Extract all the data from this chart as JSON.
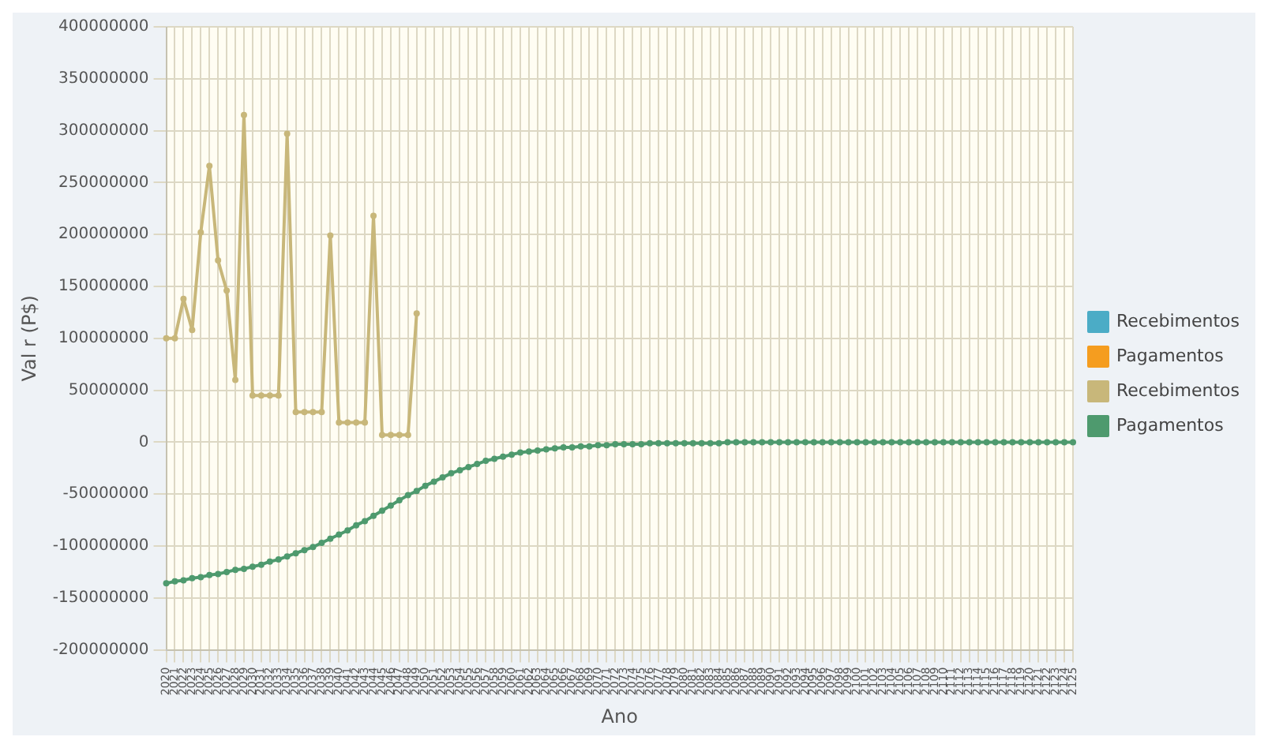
{
  "chart_data": {
    "type": "line",
    "xlabel": "Ano",
    "ylabel": "Val r (P$)",
    "categories": [
      "2020",
      "2021",
      "2022",
      "2023",
      "2024",
      "2025",
      "2026",
      "2027",
      "2028",
      "2029",
      "2030",
      "2031",
      "2032",
      "2033",
      "2034",
      "2035",
      "2036",
      "2037",
      "2038",
      "2039",
      "2040",
      "2041",
      "2042",
      "2043",
      "2044",
      "2045",
      "2046",
      "2047",
      "2048",
      "2049",
      "2050",
      "2051",
      "2052",
      "2053",
      "2054",
      "2055",
      "2056",
      "2057",
      "2058",
      "2059",
      "2060",
      "2061",
      "2062",
      "2063",
      "2064",
      "2065",
      "2066",
      "2067",
      "2068",
      "2069",
      "2070",
      "2071",
      "2072",
      "2073",
      "2074",
      "2075",
      "2076",
      "2077",
      "2078",
      "2079",
      "2080",
      "2081",
      "2082",
      "2083",
      "2084",
      "2085",
      "2086",
      "2087",
      "2088",
      "2089",
      "2090",
      "2091",
      "2092",
      "2093",
      "2094",
      "2095",
      "2096",
      "2097",
      "2098",
      "2099",
      "2100",
      "2101",
      "2102",
      "2103",
      "2104",
      "2105",
      "2106",
      "2107",
      "2108",
      "2109",
      "2110",
      "2111",
      "2112",
      "2113",
      "2114",
      "2115",
      "2116",
      "2117",
      "2118",
      "2119",
      "2120",
      "2121",
      "2122",
      "2123",
      "2124",
      "2125"
    ],
    "series": [
      {
        "name": "Recebimentos",
        "color": "#4bacc6",
        "values": [
          null,
          null,
          null,
          null,
          null,
          null,
          null,
          null,
          null,
          null,
          null,
          null,
          null,
          null,
          null,
          null,
          null,
          null,
          null,
          null,
          null,
          null,
          null,
          null,
          null,
          null,
          null,
          null,
          null,
          null,
          null,
          null,
          null,
          null,
          null,
          null,
          null,
          null,
          null,
          null,
          null,
          null,
          null,
          null,
          null,
          null,
          null,
          null,
          null,
          null,
          null,
          null,
          null,
          null,
          null,
          null,
          null,
          null,
          null,
          null,
          null,
          null,
          null,
          null,
          null,
          null,
          null,
          null,
          null,
          null,
          null,
          null,
          null,
          null,
          null,
          null,
          null,
          null,
          null,
          null,
          null,
          null,
          null,
          null,
          null,
          null,
          null,
          null,
          null,
          null,
          null,
          null,
          null,
          null,
          null,
          null,
          null,
          null,
          null,
          null,
          null,
          null,
          null,
          null,
          null,
          null
        ]
      },
      {
        "name": "Pagamentos",
        "color": "#f59d1f",
        "values": [
          null,
          null,
          null,
          null,
          null,
          null,
          null,
          null,
          null,
          null,
          null,
          null,
          null,
          null,
          null,
          null,
          null,
          null,
          null,
          null,
          null,
          null,
          null,
          null,
          null,
          null,
          null,
          null,
          null,
          null,
          null,
          null,
          null,
          null,
          null,
          null,
          null,
          null,
          null,
          null,
          null,
          null,
          null,
          null,
          null,
          null,
          null,
          null,
          null,
          null,
          null,
          null,
          null,
          null,
          null,
          null,
          null,
          null,
          null,
          null,
          null,
          null,
          null,
          null,
          null,
          null,
          null,
          null,
          null,
          null,
          null,
          null,
          null,
          null,
          null,
          null,
          null,
          null,
          null,
          null,
          null,
          null,
          null,
          null,
          null,
          null,
          null,
          null,
          null,
          null,
          null,
          null,
          null,
          null,
          null,
          null,
          null,
          null,
          null,
          null,
          null,
          null,
          null,
          null,
          null,
          null
        ]
      },
      {
        "name": "Recebimentos",
        "color": "#c8b77a",
        "values": [
          100000000,
          100000000,
          138000000,
          108000000,
          202000000,
          266000000,
          175000000,
          146000000,
          60000000,
          315000000,
          45000000,
          45000000,
          45000000,
          45000000,
          297000000,
          29000000,
          29000000,
          29000000,
          29000000,
          199000000,
          19000000,
          19000000,
          19000000,
          19000000,
          218000000,
          7000000,
          7000000,
          7000000,
          7000000,
          124000000,
          null,
          null,
          null,
          null,
          null,
          null,
          null,
          null,
          null,
          null,
          null,
          null,
          null,
          null,
          null,
          null,
          null,
          null,
          null,
          null,
          null,
          null,
          null,
          null,
          null,
          null,
          null,
          null,
          null,
          null,
          null,
          null,
          null,
          null,
          null,
          null,
          null,
          null,
          null,
          null,
          null,
          null,
          null,
          null,
          null,
          null,
          null,
          null,
          null,
          null,
          null,
          null,
          null,
          null,
          null,
          null,
          null,
          null,
          null,
          null,
          null,
          null,
          null,
          null,
          null,
          null,
          null,
          null,
          null,
          null,
          null,
          null,
          null,
          null,
          null,
          null
        ]
      },
      {
        "name": "Pagamentos",
        "color": "#4e9a6e",
        "values": [
          -136000000,
          -134000000,
          -133000000,
          -131000000,
          -130000000,
          -128000000,
          -127000000,
          -125000000,
          -123000000,
          -122000000,
          -120000000,
          -118000000,
          -115000000,
          -113000000,
          -110000000,
          -107000000,
          -104000000,
          -101000000,
          -97000000,
          -93000000,
          -89000000,
          -85000000,
          -80000000,
          -76000000,
          -71000000,
          -66000000,
          -61000000,
          -56000000,
          -51000000,
          -47000000,
          -42000000,
          -38000000,
          -34000000,
          -30000000,
          -27000000,
          -24000000,
          -21000000,
          -18000000,
          -16000000,
          -14000000,
          -12000000,
          -10000000,
          -9000000,
          -8000000,
          -7000000,
          -6000000,
          -5000000,
          -5000000,
          -4000000,
          -4000000,
          -3000000,
          -3000000,
          -2000000,
          -2000000,
          -2000000,
          -2000000,
          -1000000,
          -1000000,
          -1000000,
          -1000000,
          -1000000,
          -1000000,
          -1000000,
          -1000000,
          -1000000,
          0,
          0,
          0,
          0,
          0,
          0,
          0,
          0,
          0,
          0,
          0,
          0,
          0,
          0,
          0,
          0,
          0,
          0,
          0,
          0,
          0,
          0,
          0,
          0,
          0,
          0,
          0,
          0,
          0,
          0,
          0,
          0,
          0,
          0,
          0,
          0,
          0,
          0,
          0,
          0,
          0
        ]
      }
    ],
    "ylim": [
      -200000000,
      400000000
    ],
    "yticks": [
      -200000000,
      -150000000,
      -100000000,
      -50000000,
      0,
      50000000,
      100000000,
      150000000,
      200000000,
      250000000,
      300000000,
      350000000,
      400000000
    ],
    "grid": true,
    "legend": "right",
    "marker": "circle"
  }
}
